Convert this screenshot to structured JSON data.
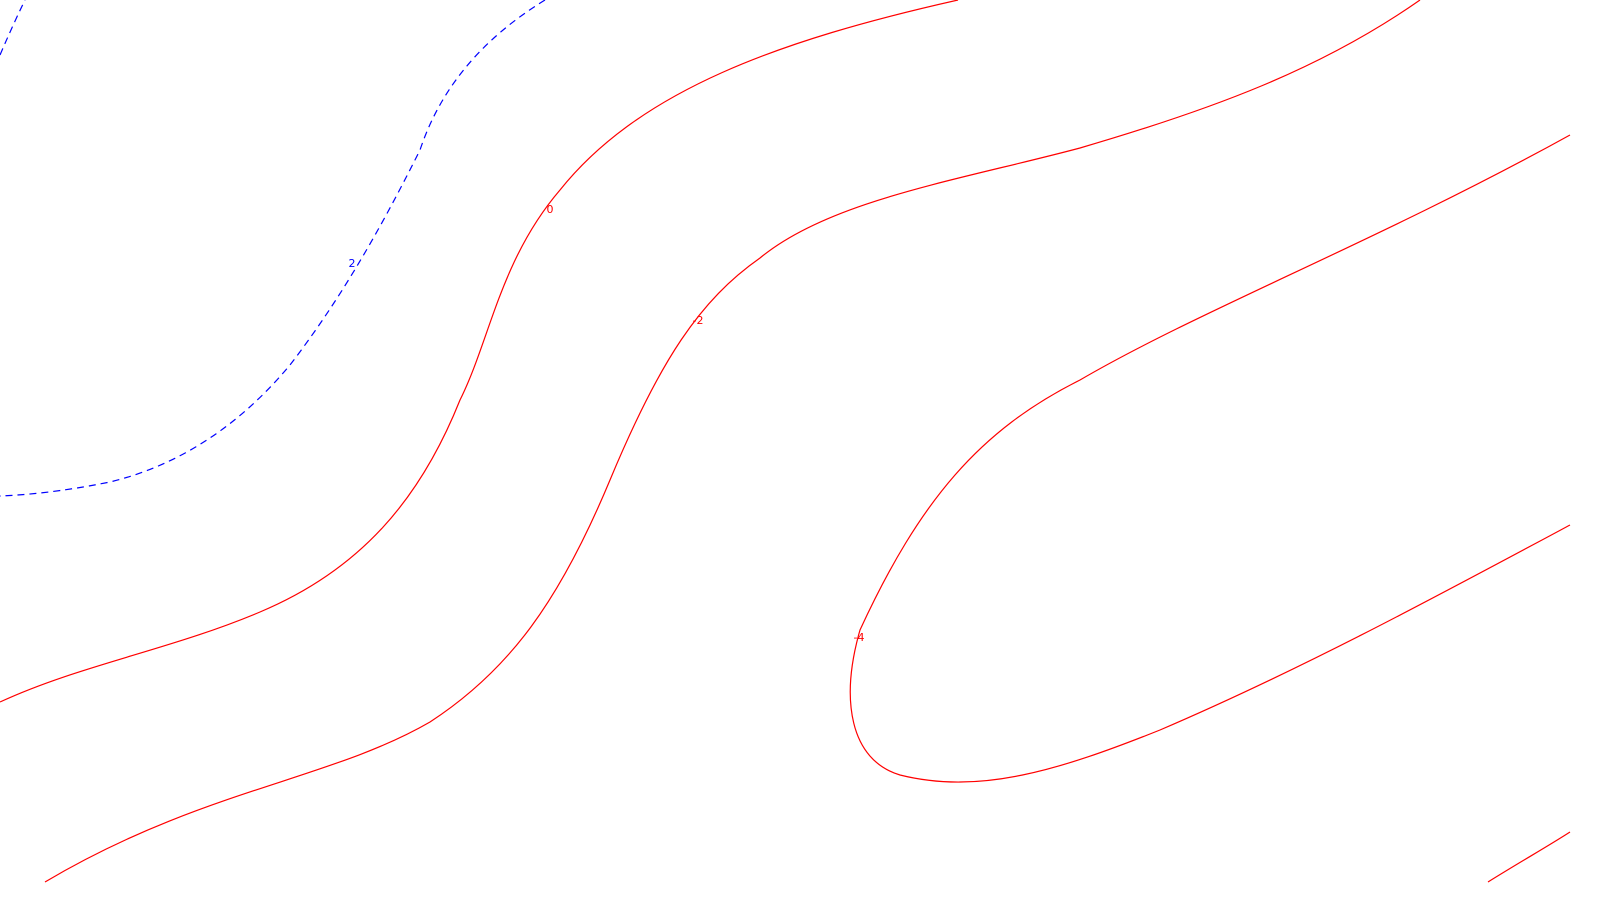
{
  "chart_data": {
    "type": "contour",
    "title": "",
    "xlabel": "",
    "ylabel": "",
    "grid": false,
    "legend": "none",
    "colors": {
      "positive": "#0000ff",
      "negative": "#ff0000",
      "background": "#ffffff"
    },
    "levels": [
      {
        "value": 2,
        "label": "2",
        "style": "dashed",
        "color": "#0000ff",
        "series_key": "level_pos2"
      },
      {
        "value": 0,
        "label": "0",
        "style": "solid",
        "color": "#ff0000",
        "series_key": "level_0"
      },
      {
        "value": -2,
        "label": "-2",
        "style": "solid",
        "color": "#ff0000",
        "series_key": "level_neg2"
      },
      {
        "value": -4,
        "label": "-4",
        "style": "solid",
        "color": "#ff0000",
        "series_key": "level_neg4"
      }
    ]
  }
}
